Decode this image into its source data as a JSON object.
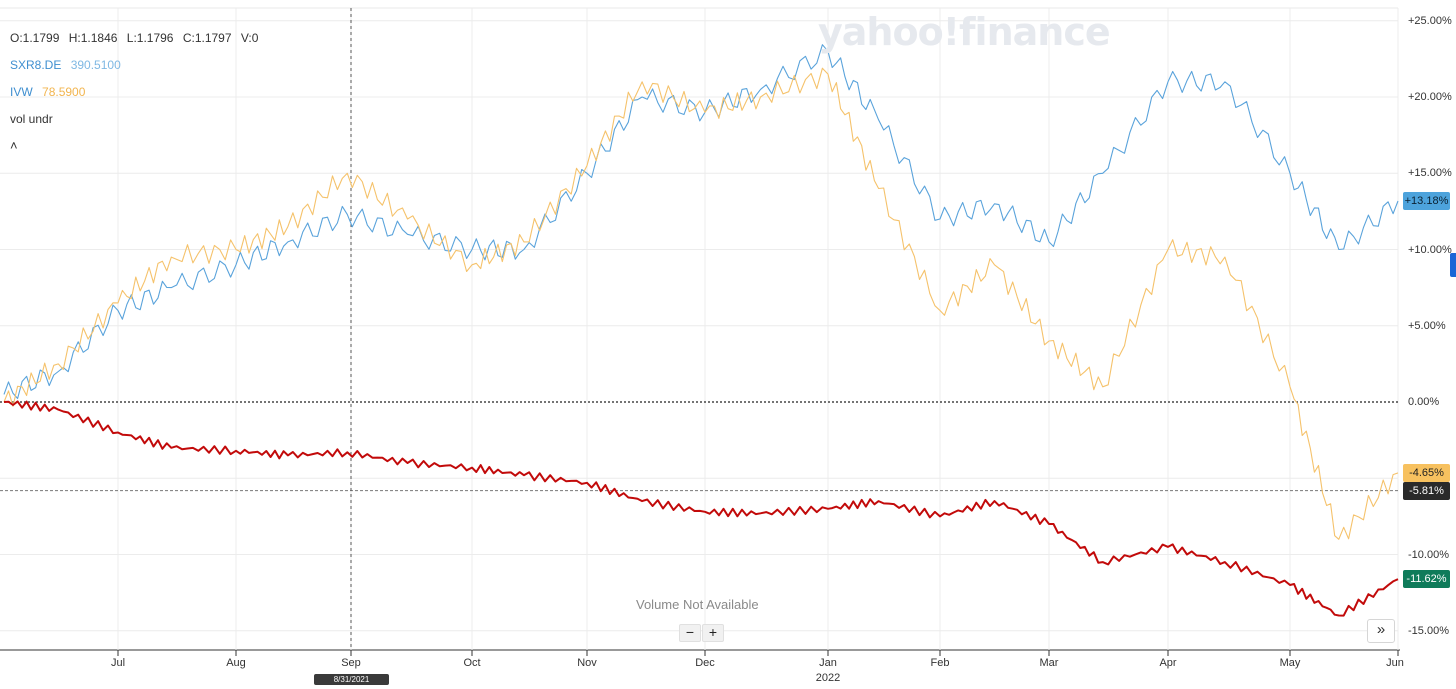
{
  "watermark": "yahoo!finance",
  "ohlc": {
    "o": "O:1.1799",
    "h": "H:1.1846",
    "l": "L:1.1796",
    "c": "C:1.1797",
    "v": "V:0"
  },
  "legend": {
    "series": [
      {
        "symbol": "SXR8.DE",
        "value": "390.5100",
        "color": "#5aa3db"
      },
      {
        "symbol": "IVW",
        "value": "78.5900",
        "color": "#f5c26b"
      }
    ],
    "vol_label": "vol undr",
    "collapse_icon": "chevron-up-icon"
  },
  "y_axis_labels": [
    "+25.00%",
    "+20.00%",
    "+15.00%",
    "+10.00%",
    "+5.00%",
    "0.00%",
    "-5.00%",
    "-10.00%",
    "-15.00%"
  ],
  "x_axis_labels": [
    "Jul",
    "Aug",
    "Sep",
    "Oct",
    "Nov",
    "Dec",
    "Jan",
    "Feb",
    "Mar",
    "Apr",
    "May",
    "Jun"
  ],
  "year_label": "2022",
  "crosshair_date": "8/31/2021",
  "value_tags": [
    {
      "text": "+13.18%",
      "value": 13.18,
      "bg": "#4da3dc",
      "fg": "#0b2233"
    },
    {
      "text": "-4.65%",
      "value": -4.65,
      "bg": "#f7c15f",
      "fg": "#222222"
    },
    {
      "text": "-5.81%",
      "value": -5.81,
      "bg": "#2a2a2a",
      "fg": "#ffffff"
    },
    {
      "text": "-11.62%",
      "value": -11.62,
      "bg": "#0f7b5a",
      "fg": "#ffffff"
    }
  ],
  "volume_note": "Volume Not Available",
  "zoom": {
    "minus": "−",
    "plus": "+"
  },
  "expand_icon_text": "»",
  "colors": {
    "sxr8": "#5aa3db",
    "ivw": "#f5c26b",
    "main": "#c20a0a",
    "grid": "#e8e8e8"
  },
  "chart_data": {
    "type": "line",
    "x": [
      "2021-06-10",
      "2021-06-20",
      "2021-07-01",
      "2021-07-15",
      "2021-08-01",
      "2021-08-15",
      "2021-08-31",
      "2021-09-15",
      "2021-10-01",
      "2021-10-15",
      "2021-11-01",
      "2021-11-15",
      "2021-12-01",
      "2021-12-15",
      "2022-01-01",
      "2022-01-15",
      "2022-02-01",
      "2022-02-15",
      "2022-03-01",
      "2022-03-15",
      "2022-04-01",
      "2022-04-15",
      "2022-05-01",
      "2022-05-15",
      "2022-06-01"
    ],
    "series": [
      {
        "name": "SXR8.DE",
        "values": [
          0.5,
          2.0,
          6.0,
          7.5,
          9.0,
          10.5,
          12.3,
          11.0,
          10.0,
          10.0,
          15.0,
          20.0,
          19.0,
          20.5,
          23.0,
          18.5,
          12.0,
          13.0,
          10.5,
          15.0,
          21.0,
          21.0,
          15.0,
          10.0,
          13.18
        ]
      },
      {
        "name": "IVW",
        "values": [
          0.0,
          2.5,
          6.5,
          9.5,
          10.0,
          11.5,
          15.0,
          12.0,
          9.0,
          10.5,
          15.5,
          21.0,
          19.0,
          20.0,
          21.5,
          14.0,
          6.0,
          9.0,
          4.0,
          1.0,
          10.0,
          9.5,
          1.0,
          -9.0,
          -4.65
        ]
      },
      {
        "name": "",
        "values": [
          0.0,
          -0.5,
          -2.0,
          -3.0,
          -3.2,
          -3.5,
          -3.3,
          -4.0,
          -4.3,
          -4.8,
          -5.3,
          -6.5,
          -7.2,
          -7.3,
          -7.0,
          -6.5,
          -7.5,
          -6.5,
          -8.0,
          -10.5,
          -9.5,
          -10.5,
          -12.0,
          -14.0,
          -11.62
        ]
      }
    ],
    "reference_lines": [
      0.0,
      -5.81
    ],
    "ylim": [
      -15.0,
      25.0
    ],
    "x_ticks": [
      "Jul",
      "Aug",
      "Sep",
      "Oct",
      "Nov",
      "Dec",
      "Jan",
      "Feb",
      "Mar",
      "Apr",
      "May",
      "Jun"
    ],
    "y_scale": "linear",
    "grid": true,
    "legend": "top-left"
  }
}
